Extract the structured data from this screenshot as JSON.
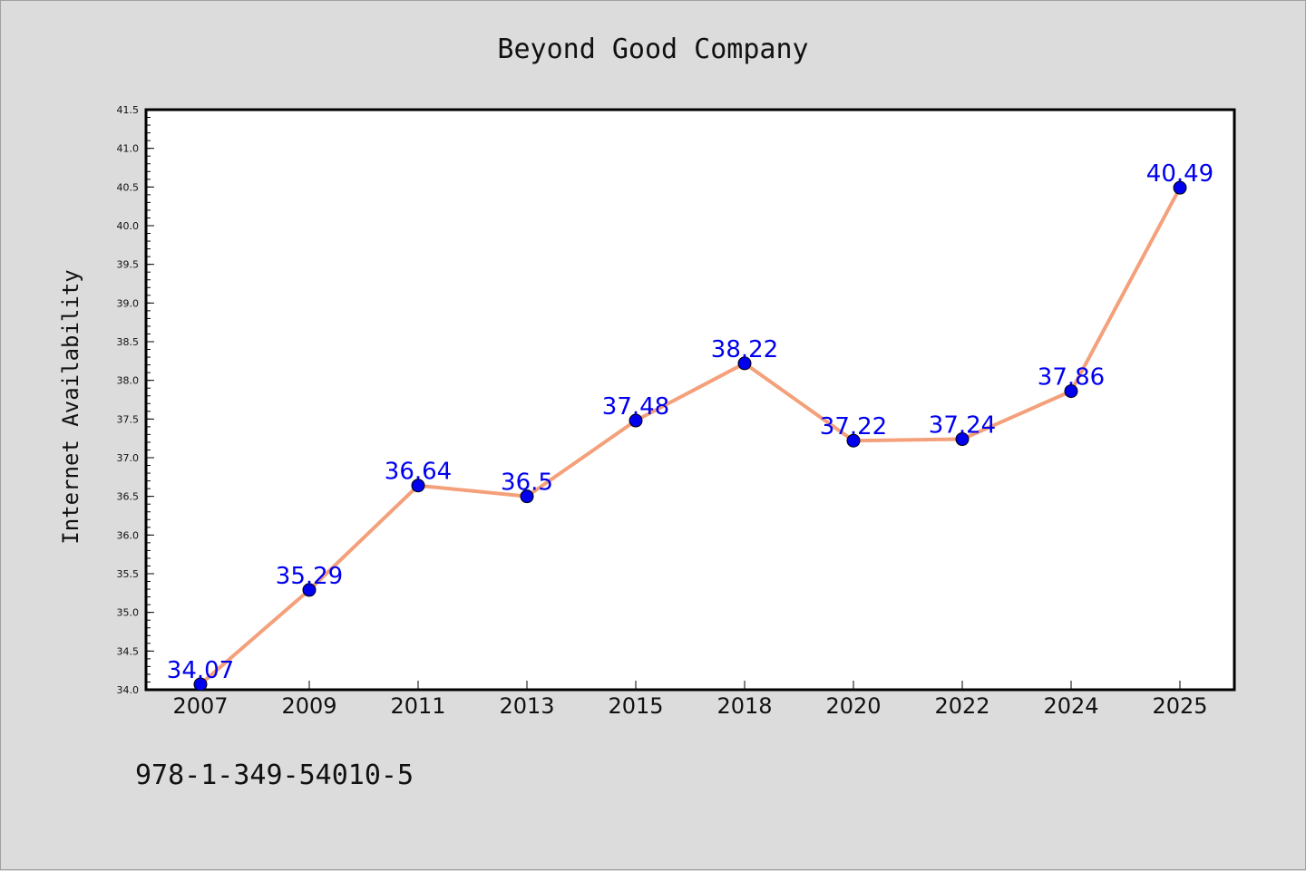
{
  "footer_text": "978-1-349-54010-5",
  "chart_data": {
    "type": "line",
    "title": "Beyond Good Company",
    "xlabel": "",
    "ylabel": "Internet Availability",
    "categories": [
      "2007",
      "2009",
      "2011",
      "2013",
      "2015",
      "2018",
      "2020",
      "2022",
      "2024",
      "2025"
    ],
    "values": [
      34.07,
      35.29,
      36.64,
      36.5,
      37.48,
      38.22,
      37.22,
      37.24,
      37.86,
      40.49
    ],
    "data_labels": [
      "34.07",
      "35.29",
      "36.64",
      "36.5",
      "37.48",
      "38.22",
      "37.22",
      "37.24",
      "37.86",
      "40.49"
    ],
    "ylim": [
      34.0,
      41.5
    ],
    "yticks": [
      "34.0",
      "34.5",
      "35.0",
      "35.5",
      "36.0",
      "36.5",
      "37.0",
      "37.5",
      "38.0",
      "38.5",
      "39.0",
      "39.5",
      "40.0",
      "40.5",
      "41.0",
      "41.5"
    ],
    "grid": false,
    "line_color": "#f4a07a",
    "marker_color": "#0000ee",
    "label_color": "#0000ee"
  }
}
